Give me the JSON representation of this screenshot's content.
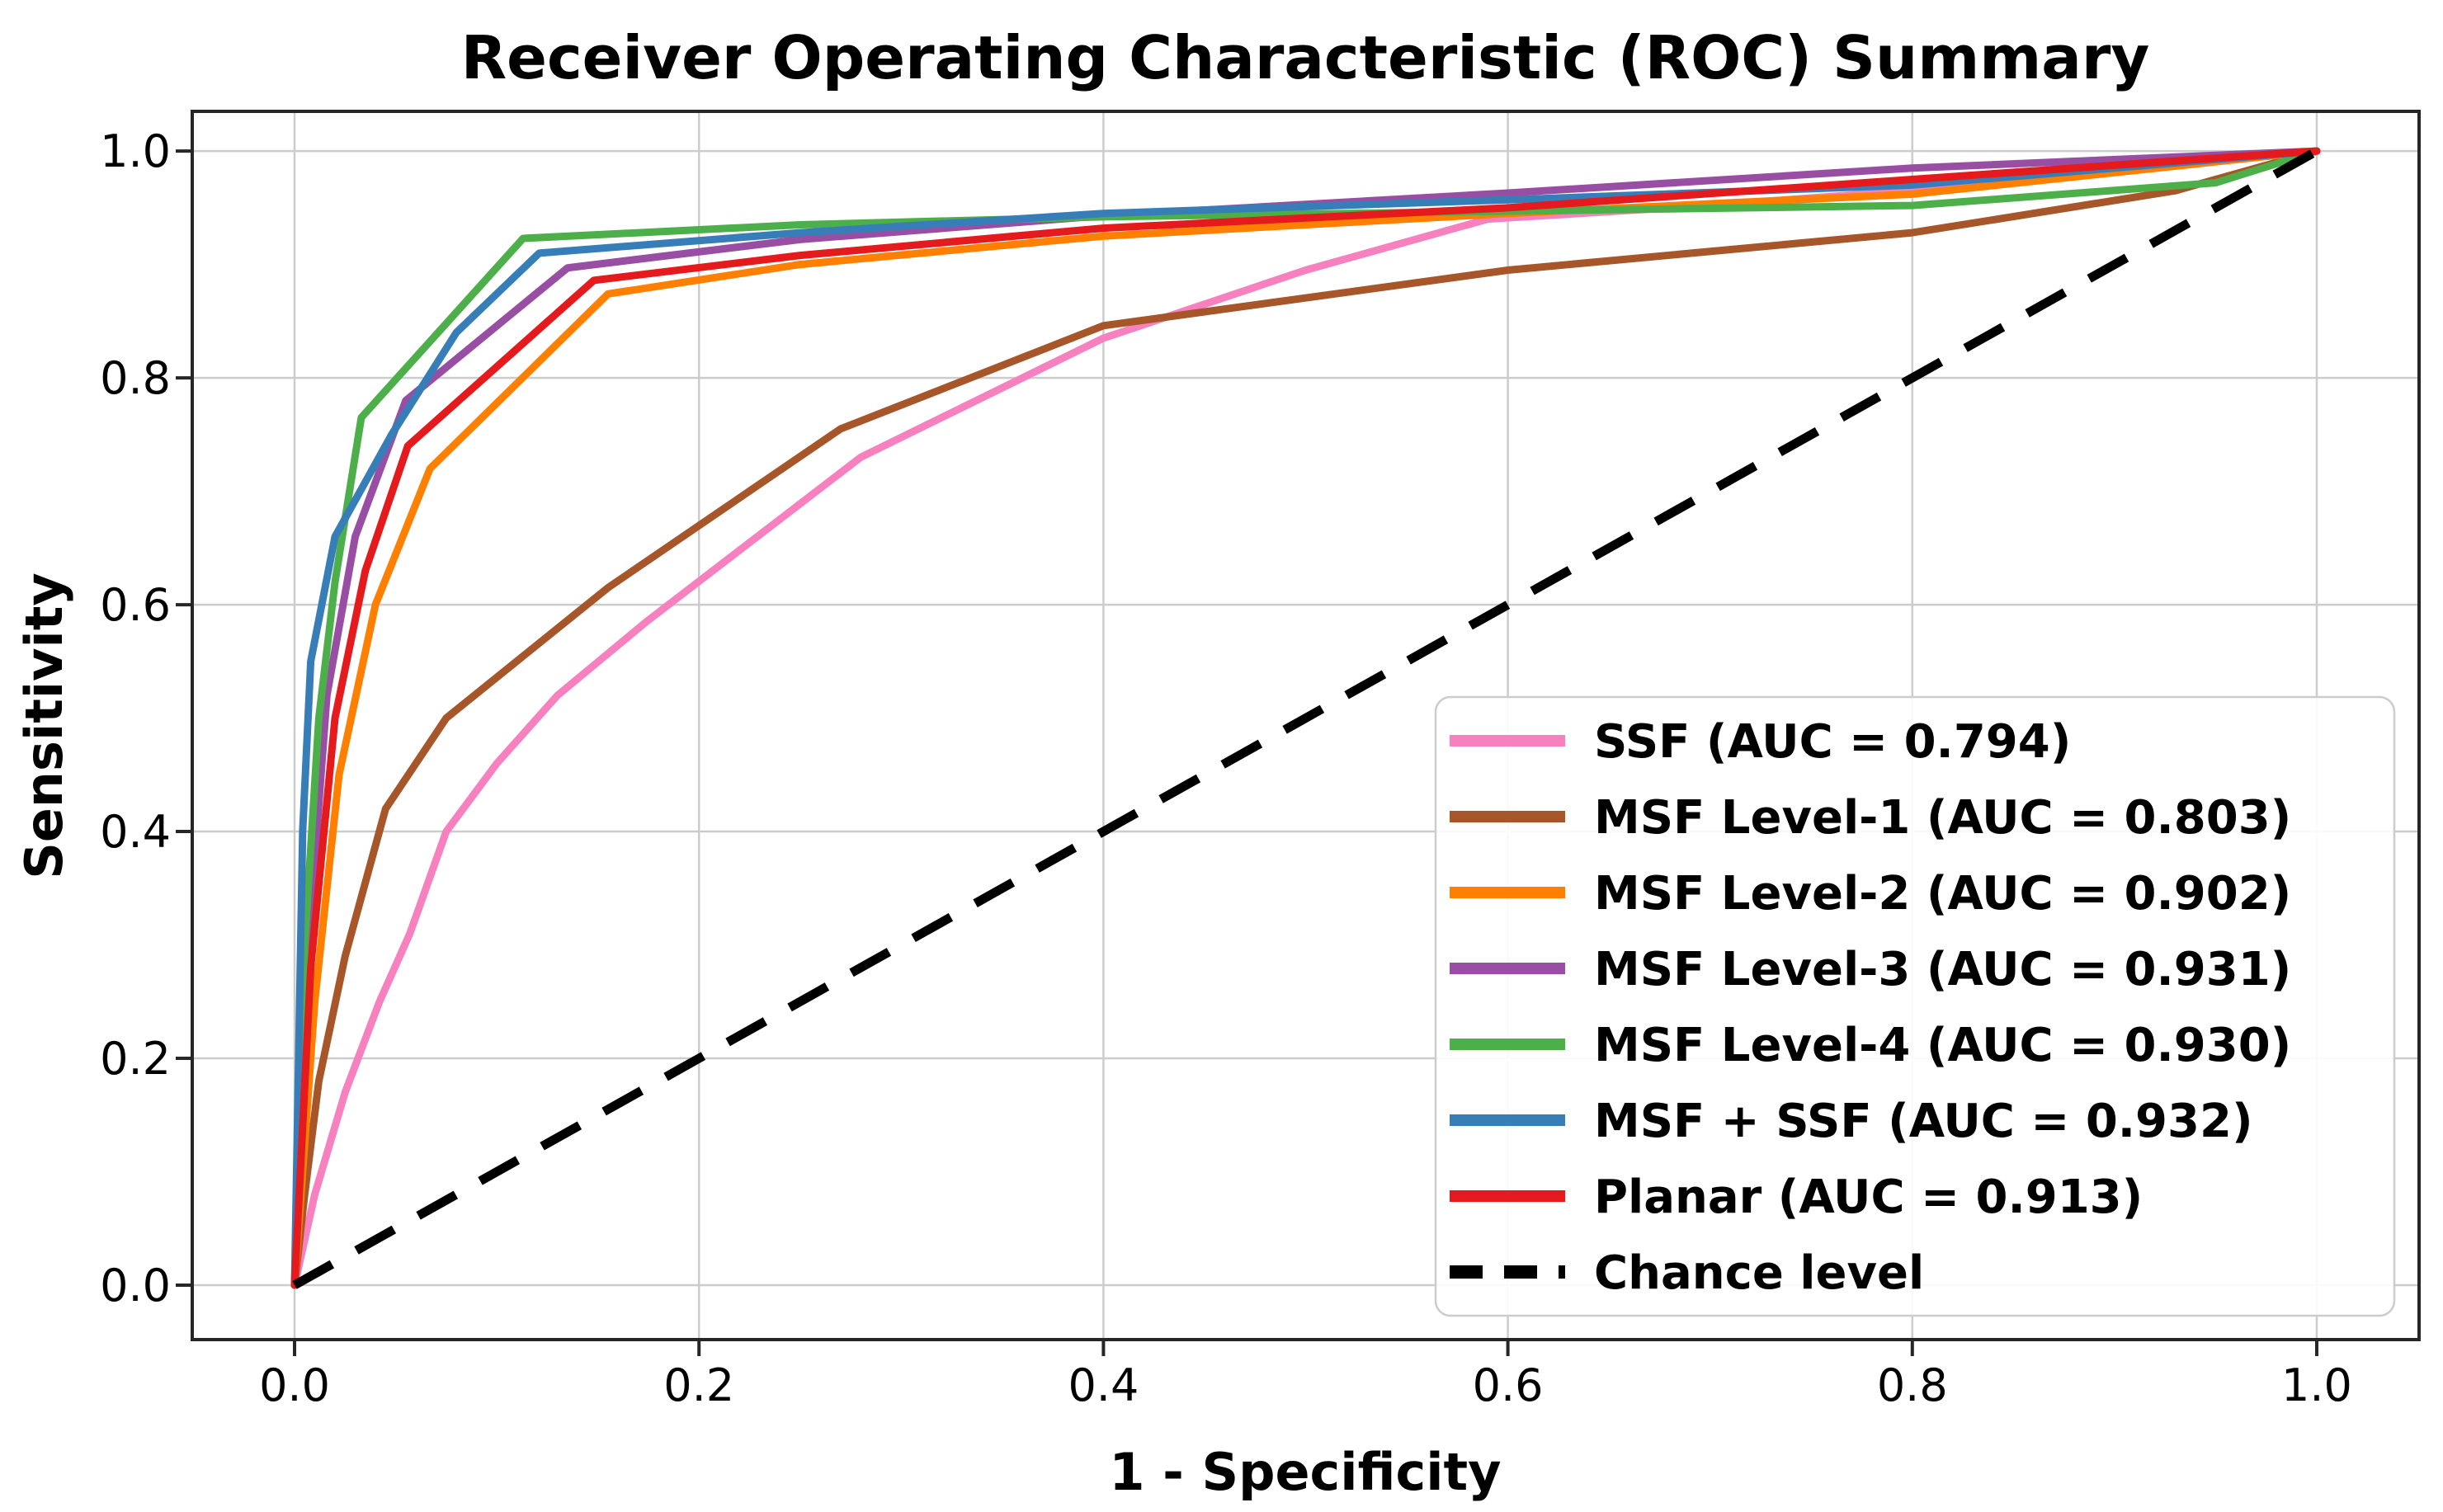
{
  "chart_data": {
    "type": "line",
    "title": "Receiver Operating Characteristic (ROC) Summary",
    "xlabel": "1 - Specificity",
    "ylabel": "Sensitivity",
    "xlim": [
      -0.0506,
      1.0506
    ],
    "ylim": [
      -0.048,
      1.035
    ],
    "grid": true,
    "legend_position": "lower right",
    "x_ticks": [
      0.0,
      0.2,
      0.4,
      0.6,
      0.8,
      1.0
    ],
    "y_ticks": [
      0.0,
      0.2,
      0.4,
      0.6,
      0.8,
      1.0
    ],
    "x_tick_labels": [
      "0.0",
      "0.2",
      "0.4",
      "0.6",
      "0.8",
      "1.0"
    ],
    "y_tick_labels": [
      "0.0",
      "0.2",
      "0.4",
      "0.6",
      "0.8",
      "1.0"
    ],
    "series": [
      {
        "id": "ssf",
        "label": "SSF (AUC = 0.794)",
        "auc": 0.794,
        "color": "#f781bf",
        "dashed": false,
        "points": [
          [
            0,
            0
          ],
          [
            0.01,
            0.08
          ],
          [
            0.025,
            0.17
          ],
          [
            0.042,
            0.25
          ],
          [
            0.057,
            0.31
          ],
          [
            0.075,
            0.4
          ],
          [
            0.1,
            0.46
          ],
          [
            0.13,
            0.52
          ],
          [
            0.174,
            0.585
          ],
          [
            0.28,
            0.73
          ],
          [
            0.4,
            0.835
          ],
          [
            0.5,
            0.895
          ],
          [
            0.59,
            0.94
          ],
          [
            0.7,
            0.952
          ],
          [
            0.85,
            0.972
          ],
          [
            1,
            1
          ]
        ]
      },
      {
        "id": "msf1",
        "label": "MSF Level-1 (AUC = 0.803)",
        "auc": 0.803,
        "color": "#a65628",
        "dashed": false,
        "points": [
          [
            0,
            0
          ],
          [
            0.005,
            0.08
          ],
          [
            0.012,
            0.18
          ],
          [
            0.025,
            0.29
          ],
          [
            0.045,
            0.42
          ],
          [
            0.075,
            0.5
          ],
          [
            0.155,
            0.615
          ],
          [
            0.27,
            0.755
          ],
          [
            0.4,
            0.846
          ],
          [
            0.6,
            0.895
          ],
          [
            0.8,
            0.928
          ],
          [
            0.93,
            0.965
          ],
          [
            1,
            1
          ]
        ]
      },
      {
        "id": "msf2",
        "label": "MSF Level-2 (AUC = 0.902)",
        "auc": 0.902,
        "color": "#ff7f00",
        "dashed": false,
        "points": [
          [
            0,
            0
          ],
          [
            0.01,
            0.25
          ],
          [
            0.022,
            0.45
          ],
          [
            0.04,
            0.6
          ],
          [
            0.067,
            0.72
          ],
          [
            0.155,
            0.874
          ],
          [
            0.25,
            0.9
          ],
          [
            0.4,
            0.925
          ],
          [
            0.6,
            0.945
          ],
          [
            0.8,
            0.962
          ],
          [
            1,
            1
          ]
        ]
      },
      {
        "id": "msf3",
        "label": "MSF Level-3 (AUC = 0.931)",
        "auc": 0.931,
        "color": "#984ea3",
        "dashed": false,
        "points": [
          [
            0,
            0
          ],
          [
            0.006,
            0.28
          ],
          [
            0.016,
            0.52
          ],
          [
            0.03,
            0.66
          ],
          [
            0.055,
            0.78
          ],
          [
            0.135,
            0.897
          ],
          [
            0.25,
            0.922
          ],
          [
            0.4,
            0.943
          ],
          [
            0.6,
            0.963
          ],
          [
            0.8,
            0.985
          ],
          [
            1,
            1
          ]
        ]
      },
      {
        "id": "msf4",
        "label": "MSF Level-4 (AUC = 0.930)",
        "auc": 0.93,
        "color": "#4daf4a",
        "dashed": false,
        "points": [
          [
            0,
            0
          ],
          [
            0.005,
            0.3
          ],
          [
            0.012,
            0.5
          ],
          [
            0.02,
            0.62
          ],
          [
            0.033,
            0.765
          ],
          [
            0.113,
            0.923
          ],
          [
            0.25,
            0.935
          ],
          [
            0.4,
            0.942
          ],
          [
            0.6,
            0.947
          ],
          [
            0.8,
            0.952
          ],
          [
            0.95,
            0.972
          ],
          [
            1,
            1
          ]
        ]
      },
      {
        "id": "msf-ssf",
        "label": "MSF + SSF (AUC = 0.932)",
        "auc": 0.932,
        "color": "#377eb8",
        "dashed": false,
        "points": [
          [
            0,
            0
          ],
          [
            0.004,
            0.4
          ],
          [
            0.008,
            0.55
          ],
          [
            0.02,
            0.66
          ],
          [
            0.048,
            0.75
          ],
          [
            0.08,
            0.84
          ],
          [
            0.121,
            0.91
          ],
          [
            0.25,
            0.928
          ],
          [
            0.4,
            0.945
          ],
          [
            0.6,
            0.957
          ],
          [
            0.8,
            0.97
          ],
          [
            1,
            1
          ]
        ]
      },
      {
        "id": "planar",
        "label": "Planar (AUC = 0.913)",
        "auc": 0.913,
        "color": "#e41a1c",
        "dashed": false,
        "points": [
          [
            0,
            0
          ],
          [
            0.008,
            0.28
          ],
          [
            0.02,
            0.5
          ],
          [
            0.035,
            0.63
          ],
          [
            0.056,
            0.74
          ],
          [
            0.148,
            0.886
          ],
          [
            0.25,
            0.908
          ],
          [
            0.4,
            0.932
          ],
          [
            0.6,
            0.95
          ],
          [
            0.8,
            0.975
          ],
          [
            1,
            1
          ]
        ]
      },
      {
        "id": "chance",
        "label": "Chance level",
        "color": "#000000",
        "dashed": true,
        "points": [
          [
            0,
            0
          ],
          [
            1,
            1
          ]
        ]
      }
    ]
  }
}
